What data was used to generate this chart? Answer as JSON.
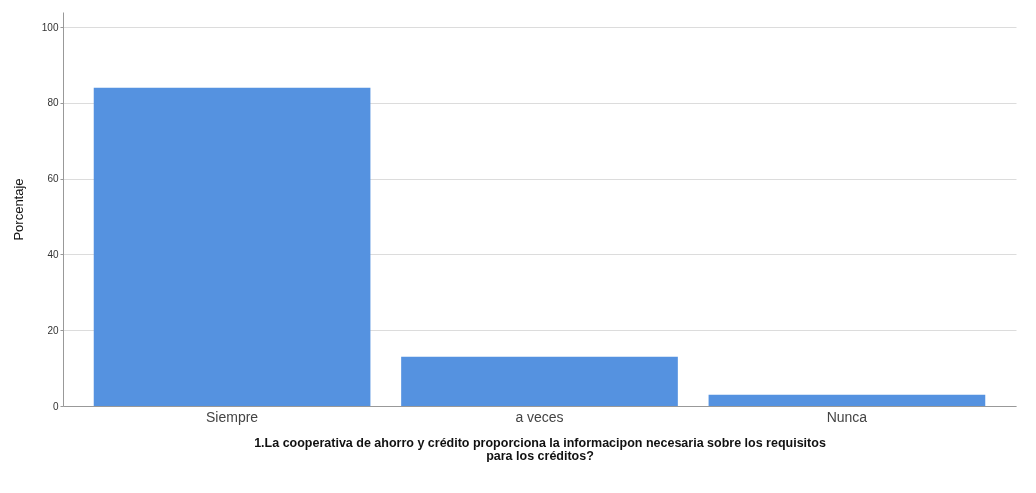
{
  "chart_data": {
    "type": "bar",
    "xlabel": "1.La cooperativa de ahorro y crédito proporciona la informacipon necesaria sobre los requisitos para los créditos?",
    "ylabel": "Porcentaje",
    "categories": [
      "Siempre",
      "a veces",
      "Nunca"
    ],
    "values": [
      84,
      13,
      3
    ],
    "color": "#5592e0",
    "ylim": [
      0,
      104
    ],
    "yticks": [
      0,
      20,
      40,
      60,
      80,
      100
    ],
    "grid": "y"
  }
}
